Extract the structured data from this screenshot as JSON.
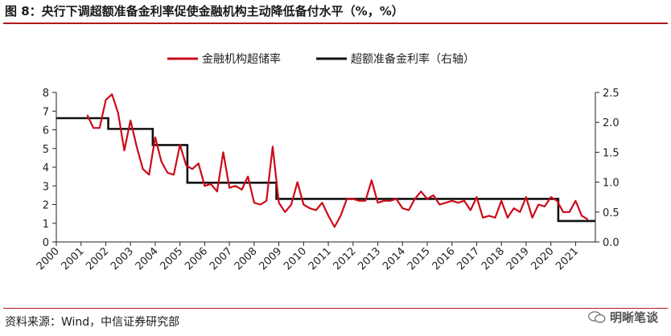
{
  "title": "图 8：央行下调超额准备金利率促使金融机构主动降低备付水平（%，%）",
  "source": "资料来源：Wind，中信证券研究部",
  "watermark": "明晰笔谈",
  "colors": {
    "primary_series": "#cc0a18",
    "secondary_series": "#111111",
    "accent_rule": "#b0191e"
  },
  "chart_data": {
    "type": "line",
    "legend_position": "top-center",
    "grid": false,
    "x_axis": {
      "ticks": [
        "2000",
        "2001",
        "2002",
        "2003",
        "2004",
        "2005",
        "2006",
        "2007",
        "2008",
        "2009",
        "2010",
        "2011",
        "2012",
        "2013",
        "2014",
        "2015",
        "2016",
        "2017",
        "2018",
        "2019",
        "2020",
        "2021"
      ],
      "range": [
        2000,
        2021.8
      ]
    },
    "y_axis_left": {
      "range": [
        0,
        8
      ],
      "ticks": [
        "0",
        "1",
        "2",
        "3",
        "4",
        "5",
        "6",
        "7",
        "8"
      ]
    },
    "y_axis_right": {
      "range": [
        0,
        2.5
      ],
      "ticks": [
        "0.0",
        "0.5",
        "1.0",
        "1.5",
        "2.0",
        "2.5"
      ]
    },
    "series": [
      {
        "name": "金融机构超储率",
        "axis": "left",
        "step": false,
        "x": [
          2001.25,
          2001.5,
          2001.75,
          2002.0,
          2002.25,
          2002.5,
          2002.75,
          2003.0,
          2003.25,
          2003.5,
          2003.75,
          2004.0,
          2004.25,
          2004.5,
          2004.75,
          2005.0,
          2005.25,
          2005.5,
          2005.75,
          2006.0,
          2006.25,
          2006.5,
          2006.75,
          2007.0,
          2007.25,
          2007.5,
          2007.75,
          2008.0,
          2008.25,
          2008.5,
          2008.75,
          2009.0,
          2009.25,
          2009.5,
          2009.75,
          2010.0,
          2010.25,
          2010.5,
          2010.75,
          2011.0,
          2011.25,
          2011.5,
          2011.75,
          2012.0,
          2012.25,
          2012.5,
          2012.75,
          2013.0,
          2013.25,
          2013.5,
          2013.75,
          2014.0,
          2014.25,
          2014.5,
          2014.75,
          2015.0,
          2015.25,
          2015.5,
          2015.75,
          2016.0,
          2016.25,
          2016.5,
          2016.75,
          2017.0,
          2017.25,
          2017.5,
          2017.75,
          2018.0,
          2018.25,
          2018.5,
          2018.75,
          2019.0,
          2019.25,
          2019.5,
          2019.75,
          2020.0,
          2020.25,
          2020.5,
          2020.75,
          2021.0,
          2021.25,
          2021.5
        ],
        "y": [
          6.8,
          6.1,
          6.1,
          7.6,
          7.9,
          6.9,
          4.9,
          6.5,
          5.1,
          3.9,
          3.6,
          5.6,
          4.3,
          3.7,
          3.6,
          5.2,
          4.1,
          3.9,
          4.2,
          3.0,
          3.1,
          2.7,
          4.8,
          2.9,
          3.0,
          2.8,
          3.5,
          2.1,
          2.0,
          2.2,
          5.1,
          2.1,
          1.6,
          2.0,
          3.2,
          2.0,
          1.8,
          1.7,
          2.1,
          1.4,
          0.8,
          1.4,
          2.3,
          2.3,
          2.2,
          2.2,
          3.3,
          2.1,
          2.2,
          2.2,
          2.3,
          1.8,
          1.7,
          2.3,
          2.7,
          2.3,
          2.5,
          2.0,
          2.1,
          2.2,
          2.1,
          2.2,
          1.7,
          2.4,
          1.3,
          1.4,
          1.3,
          2.2,
          1.3,
          1.8,
          1.6,
          2.4,
          1.3,
          2.0,
          1.9,
          2.4,
          2.2,
          1.6,
          1.6,
          2.2,
          1.4,
          1.2
        ]
      },
      {
        "name": "超额准备金利率（右轴）",
        "axis": "right",
        "step": true,
        "x": [
          2000.0,
          2002.1,
          2003.9,
          2005.3,
          2008.9,
          2020.3,
          2021.8
        ],
        "y": [
          2.07,
          1.89,
          1.62,
          0.99,
          0.72,
          0.35,
          0.35
        ]
      }
    ]
  }
}
